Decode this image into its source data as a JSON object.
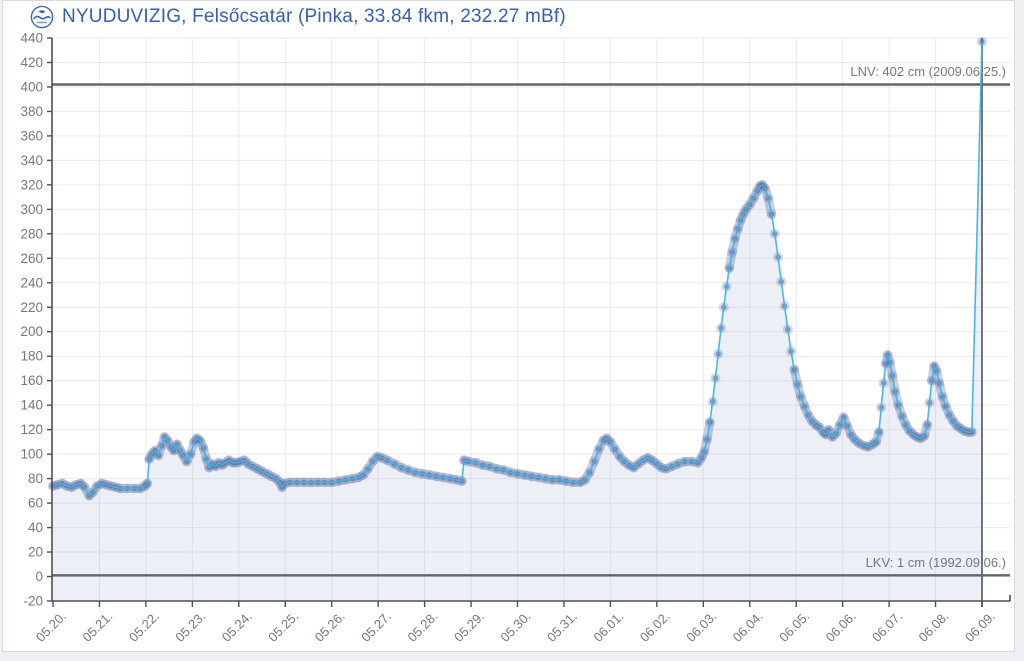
{
  "header": {
    "title": "NYUDUVIZIG, Felsőcsatár (Pinka, 33.84 fkm, 232.27 mBf)",
    "logo": "nyuduvizig-water-authority-logo"
  },
  "reference_lines": {
    "lnv": {
      "label": "LNV: 402 cm (2009.06.25.)",
      "value": 402
    },
    "lkv": {
      "label": "LKV: 1 cm (1992.09.06.)",
      "value": 1
    }
  },
  "chart_data": {
    "type": "line",
    "title": "NYUDUVIZIG, Felsőcsatár (Pinka, 33.84 fkm, 232.27 mBf)",
    "xlabel": "",
    "ylabel": "",
    "ylim": [
      -20,
      440
    ],
    "y_ticks": [
      -20,
      0,
      20,
      40,
      60,
      80,
      100,
      120,
      140,
      160,
      180,
      200,
      220,
      240,
      260,
      280,
      300,
      320,
      340,
      360,
      380,
      400,
      420,
      440
    ],
    "x_tick_labels": [
      "05.20.",
      "05.21.",
      "05.22.",
      "05.23.",
      "05.24.",
      "05.25.",
      "05.26.",
      "05.27.",
      "05.28.",
      "05.29.",
      "05.30.",
      "05.31.",
      "06.01.",
      "06.02.",
      "06.03.",
      "06.04.",
      "06.05.",
      "06.06.",
      "06.07.",
      "06.08.",
      "06.09."
    ],
    "grid": true,
    "legend": "none",
    "current_marker_day": 20,
    "last_value_cm": 437,
    "series": [
      {
        "name": "water-level-cm",
        "points": [
          [
            0,
            74
          ],
          [
            0.1,
            75
          ],
          [
            0.2,
            76
          ],
          [
            0.3,
            74
          ],
          [
            0.4,
            73
          ],
          [
            0.5,
            75
          ],
          [
            0.6,
            76
          ],
          [
            0.68,
            73
          ],
          [
            0.78,
            66
          ],
          [
            0.86,
            69
          ],
          [
            0.95,
            74
          ],
          [
            1.05,
            76
          ],
          [
            1.15,
            75
          ],
          [
            1.25,
            74
          ],
          [
            1.35,
            73
          ],
          [
            1.45,
            72
          ],
          [
            1.6,
            72
          ],
          [
            1.75,
            72
          ],
          [
            1.88,
            72
          ],
          [
            1.98,
            74
          ],
          [
            2.03,
            76
          ],
          [
            2.07,
            96
          ],
          [
            2.13,
            100
          ],
          [
            2.2,
            103
          ],
          [
            2.27,
            99
          ],
          [
            2.34,
            107
          ],
          [
            2.4,
            114
          ],
          [
            2.47,
            111
          ],
          [
            2.54,
            106
          ],
          [
            2.6,
            103
          ],
          [
            2.67,
            108
          ],
          [
            2.74,
            103
          ],
          [
            2.8,
            99
          ],
          [
            2.88,
            94
          ],
          [
            2.96,
            100
          ],
          [
            3.04,
            110
          ],
          [
            3.1,
            113
          ],
          [
            3.17,
            111
          ],
          [
            3.24,
            105
          ],
          [
            3.3,
            96
          ],
          [
            3.36,
            89
          ],
          [
            3.43,
            92
          ],
          [
            3.5,
            90
          ],
          [
            3.57,
            93
          ],
          [
            3.64,
            91
          ],
          [
            3.71,
            93
          ],
          [
            3.79,
            95
          ],
          [
            3.87,
            93
          ],
          [
            3.95,
            93
          ],
          [
            4.03,
            94
          ],
          [
            4.12,
            95
          ],
          [
            4.2,
            92
          ],
          [
            4.3,
            90
          ],
          [
            4.4,
            88
          ],
          [
            4.5,
            86
          ],
          [
            4.6,
            84
          ],
          [
            4.7,
            82
          ],
          [
            4.8,
            80
          ],
          [
            4.88,
            77
          ],
          [
            4.93,
            73
          ],
          [
            4.98,
            76
          ],
          [
            5.1,
            77
          ],
          [
            5.25,
            77
          ],
          [
            5.4,
            77
          ],
          [
            5.55,
            77
          ],
          [
            5.7,
            77
          ],
          [
            5.85,
            77
          ],
          [
            6.0,
            77
          ],
          [
            6.15,
            78
          ],
          [
            6.3,
            79
          ],
          [
            6.45,
            80
          ],
          [
            6.58,
            81
          ],
          [
            6.68,
            83
          ],
          [
            6.78,
            88
          ],
          [
            6.88,
            94
          ],
          [
            6.98,
            98
          ],
          [
            7.08,
            97
          ],
          [
            7.2,
            95
          ],
          [
            7.35,
            92
          ],
          [
            7.5,
            89
          ],
          [
            7.65,
            87
          ],
          [
            7.8,
            85
          ],
          [
            7.95,
            84
          ],
          [
            8.1,
            83
          ],
          [
            8.25,
            82
          ],
          [
            8.4,
            81
          ],
          [
            8.55,
            80
          ],
          [
            8.68,
            79
          ],
          [
            8.8,
            78
          ],
          [
            8.85,
            95
          ],
          [
            8.95,
            94
          ],
          [
            9.1,
            93
          ],
          [
            9.25,
            91
          ],
          [
            9.4,
            90
          ],
          [
            9.55,
            88
          ],
          [
            9.7,
            87
          ],
          [
            9.85,
            85
          ],
          [
            10.0,
            84
          ],
          [
            10.15,
            83
          ],
          [
            10.3,
            82
          ],
          [
            10.45,
            81
          ],
          [
            10.6,
            80
          ],
          [
            10.75,
            79
          ],
          [
            10.9,
            79
          ],
          [
            11.05,
            78
          ],
          [
            11.2,
            77
          ],
          [
            11.35,
            77
          ],
          [
            11.45,
            79
          ],
          [
            11.55,
            85
          ],
          [
            11.65,
            94
          ],
          [
            11.75,
            104
          ],
          [
            11.85,
            111
          ],
          [
            11.92,
            113
          ],
          [
            12.0,
            110
          ],
          [
            12.1,
            104
          ],
          [
            12.2,
            98
          ],
          [
            12.3,
            94
          ],
          [
            12.4,
            91
          ],
          [
            12.5,
            89
          ],
          [
            12.6,
            92
          ],
          [
            12.7,
            95
          ],
          [
            12.8,
            97
          ],
          [
            12.9,
            95
          ],
          [
            13.0,
            92
          ],
          [
            13.1,
            89
          ],
          [
            13.2,
            88
          ],
          [
            13.32,
            90
          ],
          [
            13.45,
            92
          ],
          [
            13.6,
            94
          ],
          [
            13.75,
            94
          ],
          [
            13.88,
            93
          ],
          [
            13.96,
            97
          ],
          [
            14.02,
            102
          ],
          [
            14.08,
            112
          ],
          [
            14.14,
            126
          ],
          [
            14.2,
            143
          ],
          [
            14.26,
            162
          ],
          [
            14.32,
            182
          ],
          [
            14.38,
            203
          ],
          [
            14.44,
            220
          ],
          [
            14.5,
            237
          ],
          [
            14.56,
            252
          ],
          [
            14.62,
            265
          ],
          [
            14.68,
            276
          ],
          [
            14.74,
            284
          ],
          [
            14.8,
            291
          ],
          [
            14.86,
            296
          ],
          [
            14.92,
            300
          ],
          [
            15.0,
            304
          ],
          [
            15.08,
            309
          ],
          [
            15.16,
            315
          ],
          [
            15.22,
            319
          ],
          [
            15.27,
            320
          ],
          [
            15.33,
            317
          ],
          [
            15.4,
            309
          ],
          [
            15.47,
            296
          ],
          [
            15.54,
            280
          ],
          [
            15.61,
            261
          ],
          [
            15.68,
            241
          ],
          [
            15.75,
            221
          ],
          [
            15.82,
            202
          ],
          [
            15.89,
            184
          ],
          [
            15.96,
            169
          ],
          [
            16.03,
            157
          ],
          [
            16.1,
            147
          ],
          [
            16.18,
            139
          ],
          [
            16.26,
            132
          ],
          [
            16.34,
            127
          ],
          [
            16.42,
            124
          ],
          [
            16.5,
            122
          ],
          [
            16.58,
            118
          ],
          [
            16.64,
            116
          ],
          [
            16.7,
            120
          ],
          [
            16.78,
            114
          ],
          [
            16.86,
            117
          ],
          [
            16.94,
            124
          ],
          [
            17.02,
            130
          ],
          [
            17.1,
            123
          ],
          [
            17.18,
            116
          ],
          [
            17.26,
            112
          ],
          [
            17.35,
            109
          ],
          [
            17.45,
            107
          ],
          [
            17.55,
            106
          ],
          [
            17.65,
            108
          ],
          [
            17.72,
            110
          ],
          [
            17.78,
            118
          ],
          [
            17.83,
            138
          ],
          [
            17.88,
            158
          ],
          [
            17.93,
            174
          ],
          [
            17.97,
            181
          ],
          [
            18.02,
            175
          ],
          [
            18.07,
            164
          ],
          [
            18.13,
            151
          ],
          [
            18.2,
            140
          ],
          [
            18.28,
            131
          ],
          [
            18.36,
            124
          ],
          [
            18.44,
            119
          ],
          [
            18.52,
            116
          ],
          [
            18.6,
            114
          ],
          [
            18.68,
            113
          ],
          [
            18.76,
            115
          ],
          [
            18.82,
            124
          ],
          [
            18.87,
            142
          ],
          [
            18.92,
            160
          ],
          [
            18.97,
            172
          ],
          [
            19.02,
            168
          ],
          [
            19.08,
            158
          ],
          [
            19.15,
            147
          ],
          [
            19.22,
            139
          ],
          [
            19.3,
            132
          ],
          [
            19.38,
            127
          ],
          [
            19.46,
            123
          ],
          [
            19.54,
            121
          ],
          [
            19.62,
            119
          ],
          [
            19.7,
            118
          ],
          [
            19.78,
            118
          ],
          [
            20.0,
            437
          ]
        ]
      }
    ],
    "colors": {
      "line": "#3eb2e9",
      "marker": "#6077a8",
      "marker_core": "#425c92",
      "area": "#aab4d2",
      "grid": "#e8e9ef",
      "axis": "#4c4f55",
      "tick_text": "#74787d",
      "ref_line": "#63666b",
      "title": "#355fae"
    }
  }
}
